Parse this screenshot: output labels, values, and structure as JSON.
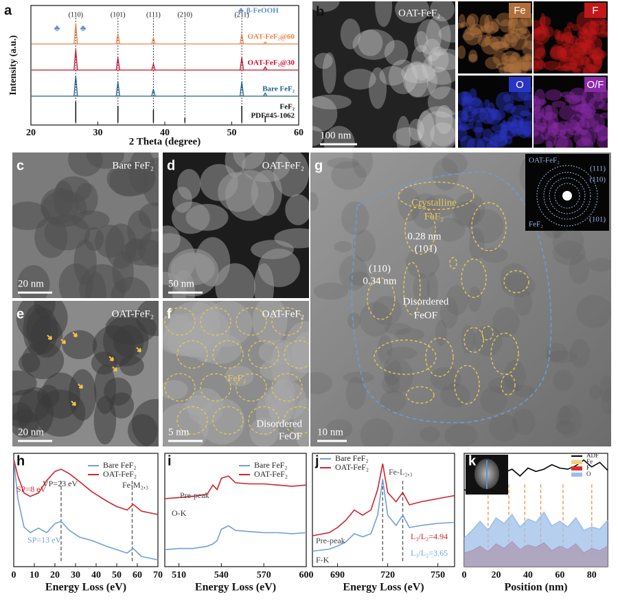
{
  "panels": {
    "b": {
      "label": "b",
      "title": "OAT-FeF₂",
      "scale": "100 nm",
      "maps": [
        "Fe",
        "F",
        "O",
        "O/F"
      ]
    },
    "c": {
      "label": "c",
      "title": "Bare FeF₂",
      "scale": "20 nm"
    },
    "d": {
      "label": "d",
      "title": "OAT-FeF₂",
      "scale": "50 nm"
    },
    "e": {
      "label": "e",
      "title": "OAT-FeF₂",
      "scale": "20 nm"
    },
    "f": {
      "label": "f",
      "title": "OAT-FeF₂",
      "scale": "5 nm",
      "annotations": [
        "FeF₂",
        "Disordered",
        "FeOF"
      ]
    },
    "g": {
      "label": "g",
      "scale": "10 nm",
      "annotations": [
        "Crystalline",
        "FeF₂",
        "0.28 nm",
        "(101)",
        "(110)",
        "0.34 nm",
        "Disordered",
        "FeOF"
      ],
      "inset": [
        "OAT-FeF₂",
        "(111)",
        "(110)",
        "(101)",
        "FeF₂"
      ]
    }
  },
  "chart_data": [
    {
      "type": "xrd",
      "panel": "a",
      "xlabel": "2 Theta (degree)",
      "ylabel": "Intensity (a.u.)",
      "xlim": [
        20,
        60
      ],
      "xticks": [
        20,
        30,
        40,
        50,
        60
      ],
      "ylim": [
        0,
        10
      ],
      "peak_labels": [
        {
          "value": 26.7,
          "label": "(110)"
        },
        {
          "value": 33.0,
          "label": "(101)"
        },
        {
          "value": 38.3,
          "label": "(111)"
        },
        {
          "value": 43.0,
          "label": "(210)"
        },
        {
          "value": 51.5,
          "label": "(211)"
        }
      ],
      "phase_symbol": "♣",
      "phase_name": "β-FeOOH",
      "phase_color": "#5b8fd0",
      "phase_markers": [
        23.9,
        27.8
      ],
      "series": [
        {
          "name": "OAT-FeF₂@60",
          "color": "#e9844a",
          "style": "line",
          "x": [
            26.7,
            33.0,
            38.3,
            51.5,
            55.0
          ],
          "values": [
            10,
            5,
            3,
            5,
            1
          ]
        },
        {
          "name": "OAT-FeF₂@30",
          "color": "#c8102e",
          "style": "line",
          "x": [
            26.7,
            33.0,
            38.3,
            51.5,
            55.0
          ],
          "values": [
            10,
            6,
            3,
            6,
            1.5
          ]
        },
        {
          "name": "Bare FeF₂",
          "color": "#1f5f8b",
          "style": "line",
          "x": [
            26.7,
            33.0,
            38.3,
            51.5,
            55.0
          ],
          "values": [
            10,
            7,
            3.5,
            7,
            1.5
          ]
        },
        {
          "name": "FeF₂",
          "reference": "PDF#45-1062",
          "color": "#111111",
          "style": "stick",
          "x": [
            26.7,
            33.0,
            38.3,
            43.0,
            51.5,
            55.0
          ],
          "values": [
            10,
            8,
            6,
            2,
            8,
            3
          ]
        }
      ]
    },
    {
      "type": "line",
      "panel": "h",
      "xlabel": "Energy Loss (eV)",
      "xlim": [
        0,
        70
      ],
      "xticks": [
        0,
        10,
        20,
        30,
        40,
        50,
        60,
        70
      ],
      "ylim": [
        0,
        10
      ],
      "dashed_lines": [
        23,
        57.5
      ],
      "dashed_color": "#555555",
      "annotations": [
        "SP=8 eV",
        "VP=23 eV",
        "Fe-M₂,₃",
        "SP=13 eV"
      ],
      "x": [
        0,
        2,
        5,
        8,
        12,
        16,
        20,
        23,
        27,
        32,
        38,
        45,
        50,
        55,
        58,
        62,
        70
      ],
      "series": [
        {
          "name": "Bare FeF₂",
          "color": "#6f9fd8",
          "values": [
            9.5,
            6,
            3.5,
            3.0,
            3.4,
            3.0,
            3.8,
            4.0,
            3.2,
            2.6,
            2.3,
            1.8,
            1.5,
            1.2,
            1.6,
            0.9,
            0.6
          ]
        },
        {
          "name": "OAT-FeF₂",
          "color": "#d0202a",
          "values": [
            9.5,
            8,
            6.5,
            6.2,
            6.5,
            7.6,
            8.4,
            8.6,
            8.2,
            7.5,
            6.6,
            5.8,
            5.3,
            5.0,
            5.5,
            4.9,
            4.6
          ]
        }
      ]
    },
    {
      "type": "line",
      "panel": "i",
      "xlabel": "Energy Loss (eV)",
      "xlim": [
        500,
        600
      ],
      "xticks": [
        510,
        540,
        570,
        600
      ],
      "ylim": [
        0,
        10
      ],
      "annotations": [
        "Pre-peak",
        "O-K"
      ],
      "x": [
        500,
        510,
        520,
        530,
        534,
        537,
        540,
        545,
        550,
        560,
        570,
        580,
        590,
        600
      ],
      "series": [
        {
          "name": "Bare FeF₂",
          "color": "#6f9fd8",
          "values": [
            1.5,
            1.6,
            1.6,
            1.8,
            2.0,
            2.3,
            3.3,
            3.6,
            3.2,
            3.1,
            3.0,
            3.0,
            2.9,
            3.0
          ]
        },
        {
          "name": "OAT-FeF₂",
          "color": "#d0202a",
          "values": [
            6.0,
            6.1,
            6.2,
            6.4,
            7.2,
            6.8,
            7.8,
            8.0,
            7.4,
            7.3,
            7.3,
            7.2,
            7.1,
            7.2
          ]
        }
      ]
    },
    {
      "type": "line",
      "panel": "j",
      "xlabel": "Energy Loss (eV)",
      "xlim": [
        675,
        760
      ],
      "xticks": [
        690,
        720,
        750
      ],
      "ylim": [
        0,
        11
      ],
      "dashed_lines": [
        717,
        729
      ],
      "dashed_color": "#555555",
      "annotations": [
        "Fe-L₂,₃",
        "Pre-peak",
        "F-K",
        "L₃/L₂=4.94",
        "L₃/L₂=3.65"
      ],
      "x": [
        675,
        685,
        690,
        695,
        700,
        705,
        710,
        714,
        717,
        720,
        725,
        729,
        733,
        740,
        750,
        760
      ],
      "series": [
        {
          "name": "Bare FeF₂",
          "color": "#6f9fd8",
          "values": [
            1.5,
            1.7,
            2.0,
            2.4,
            3.2,
            2.9,
            3.2,
            5.0,
            8.5,
            5.0,
            4.0,
            5.0,
            3.8,
            4.0,
            4.2,
            4.3
          ]
        },
        {
          "name": "OAT-FeF₂",
          "color": "#d0202a",
          "values": [
            3,
            3.3,
            3.8,
            4.5,
            5.5,
            5.0,
            5.5,
            7.5,
            10,
            7.2,
            6.3,
            7.2,
            6.0,
            6.3,
            6.6,
            6.9
          ]
        }
      ]
    },
    {
      "type": "line",
      "panel": "k",
      "xlabel": "Position (nm)",
      "xlim": [
        0,
        90
      ],
      "xticks": [
        0,
        20,
        40,
        60,
        80
      ],
      "ylim": [
        0,
        10
      ],
      "dashed_lines": [
        15,
        28,
        38,
        48,
        62,
        80
      ],
      "dashed_color": "#e9944a",
      "x": [
        0,
        5,
        10,
        15,
        20,
        25,
        30,
        35,
        40,
        45,
        50,
        55,
        60,
        65,
        70,
        75,
        80,
        85,
        90
      ],
      "series": [
        {
          "name": "ADF",
          "color": "#000000",
          "style": "line",
          "values": [
            6.8,
            6.5,
            7.2,
            7.0,
            7.6,
            8.3,
            8.6,
            8.0,
            8.7,
            8.4,
            8.6,
            9.0,
            8.7,
            8.6,
            8.9,
            9.4,
            8.8,
            9.2,
            8.5
          ]
        },
        {
          "name": "Fe",
          "color": "#f2d27a",
          "style": "area",
          "values": [
            1.0,
            1.2,
            1.5,
            1.1,
            1.6,
            1.4,
            1.8,
            1.3,
            1.6,
            1.5,
            1.8,
            1.2,
            1.5,
            1.3,
            1.7,
            1.0,
            1.3,
            1.2,
            1.5
          ]
        },
        {
          "name": "F",
          "color": "#d9302a",
          "style": "area",
          "values": [
            1.2,
            1.4,
            1.8,
            1.3,
            2.0,
            1.6,
            2.2,
            1.5,
            1.9,
            1.7,
            2.1,
            1.4,
            1.8,
            1.5,
            2.0,
            1.2,
            1.6,
            1.4,
            1.8
          ]
        },
        {
          "name": "O",
          "color": "#9dbfe8",
          "style": "area",
          "values": [
            2.5,
            3.2,
            4.0,
            3.2,
            4.3,
            3.8,
            4.6,
            3.5,
            4.2,
            3.9,
            4.8,
            3.6,
            4.0,
            3.5,
            4.3,
            3.2,
            3.5,
            3.3,
            4.1
          ]
        }
      ]
    }
  ]
}
